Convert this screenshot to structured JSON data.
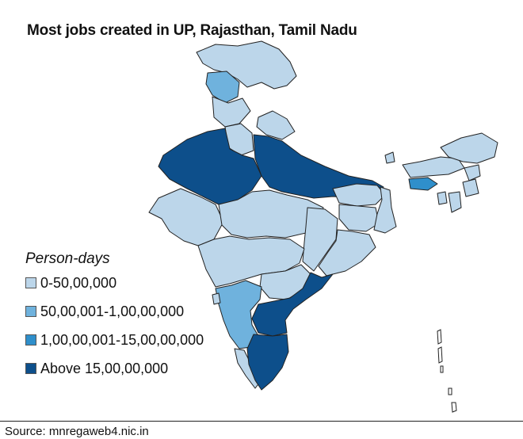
{
  "title": "Most jobs created in UP, Rajasthan, Tamil Nadu",
  "legend": {
    "title": "Person-days",
    "items": [
      {
        "label": "0-50,00,000",
        "color": "#bcd6ea"
      },
      {
        "label": "50,00,001-1,00,00,000",
        "color": "#6fb2dd"
      },
      {
        "label": "1,00,00,001-15,00,00,000",
        "color": "#2f8fcb"
      },
      {
        "label": "Above 15,00,00,000",
        "color": "#0d4f8b"
      }
    ]
  },
  "source": "Source: mnregaweb4.nic.in"
}
